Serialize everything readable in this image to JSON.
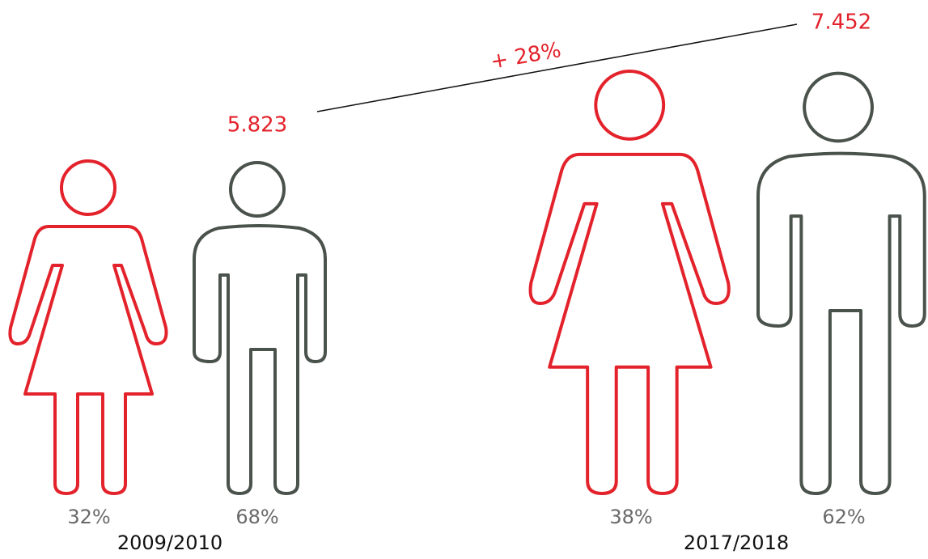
{
  "growth": "+ 28%",
  "periods": [
    {
      "label": "2009/2010",
      "total": "5.823",
      "female": "32%",
      "male": "68%"
    },
    {
      "label": "2017/2018",
      "total": "7.452",
      "female": "38%",
      "male": "62%"
    }
  ]
}
